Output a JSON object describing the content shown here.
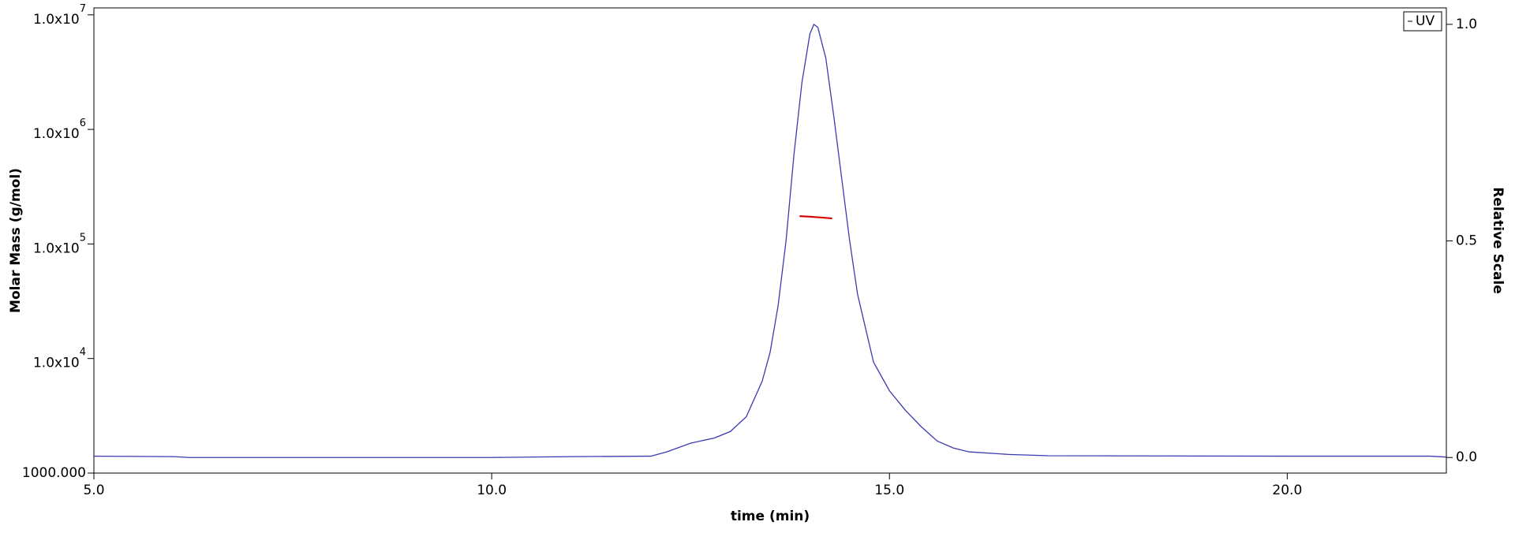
{
  "chart_data": {
    "type": "line",
    "x_label": "time (min)",
    "y_label": "Molar Mass (g/mol)",
    "y2_label": "Relative Scale",
    "xlim": [
      5,
      22
    ],
    "xticks": [
      {
        "value": 5,
        "label": "5.0"
      },
      {
        "value": 10,
        "label": "10.0"
      },
      {
        "value": 15,
        "label": "15.0"
      },
      {
        "value": 20,
        "label": "20.0"
      }
    ],
    "ylog": true,
    "ylim": [
      1000,
      11500000
    ],
    "yticks": [
      {
        "value": 1000,
        "label": "1000.000"
      },
      {
        "value": 10000,
        "label": "1.0x10",
        "power": "4"
      },
      {
        "value": 100000,
        "label": "1.0x10",
        "power": "5"
      },
      {
        "value": 1000000,
        "label": "1.0x10",
        "power": "6"
      },
      {
        "value": 10000000,
        "label": "1.0x10",
        "power": "7"
      }
    ],
    "y2lim": [
      -0.036,
      1.038
    ],
    "y2ticks": [
      {
        "value": 0,
        "label": "0.0"
      },
      {
        "value": 0.5,
        "label": "0.5"
      },
      {
        "value": 1,
        "label": "1.0"
      }
    ],
    "series": [
      {
        "name": "UV",
        "color": "#3b3bb0",
        "axis": "y2",
        "x": [
          5.0,
          6.0,
          6.2,
          10.0,
          11.0,
          12.0,
          12.2,
          12.5,
          12.8,
          13.0,
          13.2,
          13.4,
          13.5,
          13.6,
          13.7,
          13.8,
          13.9,
          14.0,
          14.05,
          14.1,
          14.2,
          14.3,
          14.4,
          14.5,
          14.6,
          14.8,
          15.0,
          15.2,
          15.4,
          15.6,
          15.8,
          16.0,
          16.5,
          17.0,
          20.0,
          21.8,
          22.0
        ],
        "values": [
          0.003,
          0.002,
          0.0,
          0.0,
          0.002,
          0.003,
          0.013,
          0.033,
          0.045,
          0.06,
          0.094,
          0.176,
          0.243,
          0.35,
          0.5,
          0.7,
          0.866,
          0.978,
          1.0,
          0.993,
          0.922,
          0.788,
          0.644,
          0.5,
          0.376,
          0.22,
          0.154,
          0.109,
          0.071,
          0.038,
          0.022,
          0.013,
          0.007,
          0.004,
          0.003,
          0.003,
          0.001
        ]
      },
      {
        "color": "#d40000",
        "axis": "y",
        "x": [
          13.87,
          14.0,
          14.1,
          14.2,
          14.28
        ],
        "values": [
          175000,
          173000,
          171000,
          169000,
          167000
        ]
      }
    ],
    "legend": "top-right"
  }
}
